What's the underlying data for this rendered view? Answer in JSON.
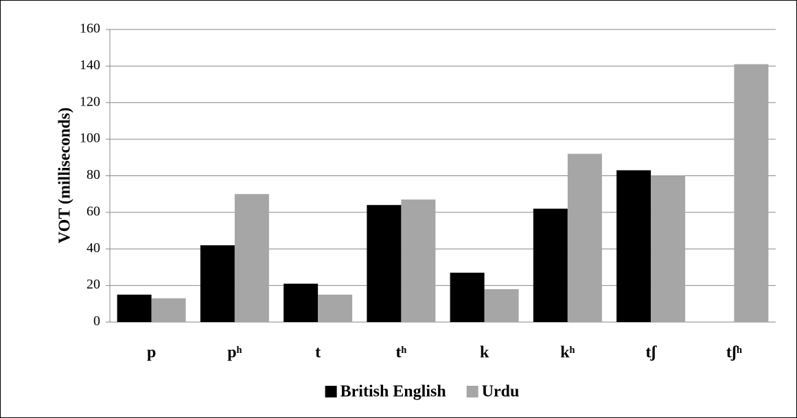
{
  "chart_data": {
    "type": "bar",
    "y_label": "VOT (milliseconds)",
    "categories": [
      "p",
      "pʰ",
      "t",
      "tʰ",
      "k",
      "kʰ",
      "tʃ",
      "tʃʰ"
    ],
    "series": [
      {
        "name": "British English",
        "color": "#000000",
        "values": [
          15,
          42,
          21,
          64,
          27,
          62,
          83,
          null
        ]
      },
      {
        "name": "Urdu",
        "color": "#a6a6a6",
        "values": [
          13,
          70,
          15,
          67,
          18,
          92,
          80,
          141
        ]
      }
    ],
    "ylim": [
      0,
      160
    ],
    "yticks": [
      0,
      20,
      40,
      60,
      80,
      100,
      120,
      140,
      160
    ],
    "grid": true,
    "legend": "bottom"
  }
}
